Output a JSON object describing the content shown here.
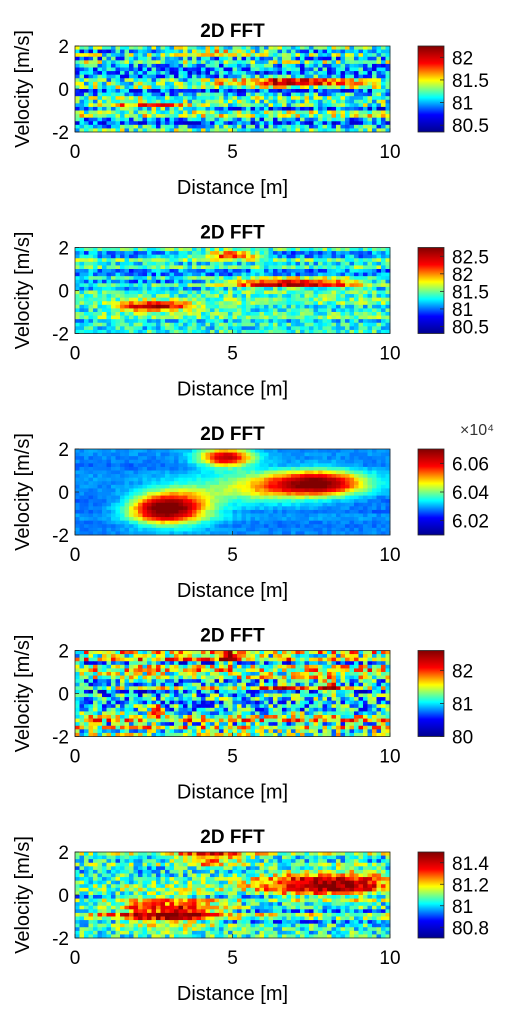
{
  "colormap_stops": [
    "#00008f",
    "#0000ff",
    "#00ffff",
    "#ffff00",
    "#ff0000",
    "#800000"
  ],
  "chart_data": [
    {
      "type": "heatmap",
      "title": "2D FFT",
      "xlabel": "Distance [m]",
      "ylabel": "Velocity [m/s]",
      "xlim": [
        0,
        10
      ],
      "ylim": [
        -2,
        2
      ],
      "xticks": [
        "0",
        "5",
        "10"
      ],
      "yticks": [
        "-2",
        "0",
        "2"
      ],
      "colorbar": {
        "range": [
          80.35,
          82.25
        ],
        "ticks": [
          82,
          81.5,
          81,
          80.5
        ],
        "tick_labels": [
          "82",
          "81.5",
          "81",
          "80.5"
        ],
        "exponent_label": ""
      },
      "noise": 0.35,
      "base": 0.4,
      "hotspots": [
        {
          "x": 7.0,
          "y": 0.35,
          "sx": 1.6,
          "sy": 0.12,
          "amp": 0.55
        },
        {
          "x": 2.5,
          "y": -0.8,
          "sx": 1.0,
          "sy": 0.1,
          "amp": 0.4
        },
        {
          "x": 4.8,
          "y": 1.7,
          "sx": 0.9,
          "sy": 0.08,
          "amp": 0.35
        }
      ]
    },
    {
      "type": "heatmap",
      "title": "2D FFT",
      "xlabel": "Distance [m]",
      "ylabel": "Velocity [m/s]",
      "xlim": [
        0,
        10
      ],
      "ylim": [
        -2,
        2
      ],
      "xticks": [
        "0",
        "5",
        "10"
      ],
      "yticks": [
        "-2",
        "0",
        "2"
      ],
      "colorbar": {
        "range": [
          80.3,
          82.75
        ],
        "ticks": [
          82.5,
          82,
          81.5,
          81,
          80.5
        ],
        "tick_labels": [
          "82.5",
          "82",
          "81.5",
          "81",
          "80.5"
        ],
        "exponent_label": ""
      },
      "noise": 0.22,
      "base": 0.4,
      "hotspots": [
        {
          "x": 7.0,
          "y": 0.35,
          "sx": 1.5,
          "sy": 0.15,
          "amp": 0.6
        },
        {
          "x": 2.5,
          "y": -0.75,
          "sx": 0.8,
          "sy": 0.15,
          "amp": 0.55
        },
        {
          "x": 4.9,
          "y": 1.65,
          "sx": 0.7,
          "sy": 0.12,
          "amp": 0.5
        }
      ]
    },
    {
      "type": "heatmap",
      "title": "2D FFT",
      "xlabel": "Distance [m]",
      "ylabel": "Velocity [m/s]",
      "xlim": [
        0,
        10
      ],
      "ylim": [
        -2,
        2
      ],
      "xticks": [
        "0",
        "5",
        "10"
      ],
      "yticks": [
        "-2",
        "0",
        "2"
      ],
      "colorbar": {
        "range": [
          6.01,
          6.07
        ],
        "ticks": [
          6.06,
          6.04,
          6.02
        ],
        "tick_labels": [
          "6.06",
          "6.04",
          "6.02"
        ],
        "exponent_label": "×10⁴"
      },
      "noise": 0.05,
      "base": 0.3,
      "hotspots": [
        {
          "x": 7.8,
          "y": 0.4,
          "sx": 1.0,
          "sy": 0.4,
          "amp": 0.65
        },
        {
          "x": 2.7,
          "y": -0.8,
          "sx": 0.7,
          "sy": 0.45,
          "amp": 0.6
        },
        {
          "x": 4.8,
          "y": 1.6,
          "sx": 0.6,
          "sy": 0.3,
          "amp": 0.6
        },
        {
          "x": 3.5,
          "y": -0.6,
          "sx": 0.8,
          "sy": 0.6,
          "amp": 0.35
        },
        {
          "x": 6.0,
          "y": 0.2,
          "sx": 1.2,
          "sy": 0.5,
          "amp": 0.3
        }
      ]
    },
    {
      "type": "heatmap",
      "title": "2D FFT",
      "xlabel": "Distance [m]",
      "ylabel": "Velocity [m/s]",
      "xlim": [
        0,
        10
      ],
      "ylim": [
        -2,
        2
      ],
      "xticks": [
        "0",
        "5",
        "10"
      ],
      "yticks": [
        "-2",
        "0",
        "2"
      ],
      "colorbar": {
        "range": [
          80.0,
          82.6
        ],
        "ticks": [
          82,
          81,
          80
        ],
        "tick_labels": [
          "82",
          "81",
          "80"
        ],
        "exponent_label": ""
      },
      "noise": 0.45,
      "base": 0.45,
      "hotspots": [
        {
          "x": 4.8,
          "y": 1.7,
          "sx": 0.15,
          "sy": 0.2,
          "amp": 0.55
        },
        {
          "x": 8.1,
          "y": 0.3,
          "sx": 0.15,
          "sy": 0.25,
          "amp": 0.5
        },
        {
          "x": 2.6,
          "y": -0.8,
          "sx": 0.15,
          "sy": 0.2,
          "amp": 0.45
        },
        {
          "x": 7.0,
          "y": 0.3,
          "sx": 1.0,
          "sy": 0.08,
          "amp": 0.3
        }
      ]
    },
    {
      "type": "heatmap",
      "title": "2D FFT",
      "xlabel": "Distance [m]",
      "ylabel": "Velocity [m/s]",
      "xlim": [
        0,
        10
      ],
      "ylim": [
        -2,
        2
      ],
      "xticks": [
        "0",
        "5",
        "10"
      ],
      "yticks": [
        "-2",
        "0",
        "2"
      ],
      "colorbar": {
        "range": [
          80.7,
          81.5
        ],
        "ticks": [
          81.4,
          81.2,
          81,
          80.8
        ],
        "tick_labels": [
          "81.4",
          "81.2",
          "81",
          "80.8"
        ],
        "exponent_label": ""
      },
      "noise": 0.3,
      "base": 0.42,
      "hotspots": [
        {
          "x": 8.0,
          "y": 0.5,
          "sx": 1.4,
          "sy": 0.4,
          "amp": 0.55
        },
        {
          "x": 3.0,
          "y": -0.8,
          "sx": 1.2,
          "sy": 0.45,
          "amp": 0.5
        },
        {
          "x": 4.3,
          "y": 1.8,
          "sx": 0.8,
          "sy": 0.3,
          "amp": 0.35
        }
      ]
    }
  ]
}
